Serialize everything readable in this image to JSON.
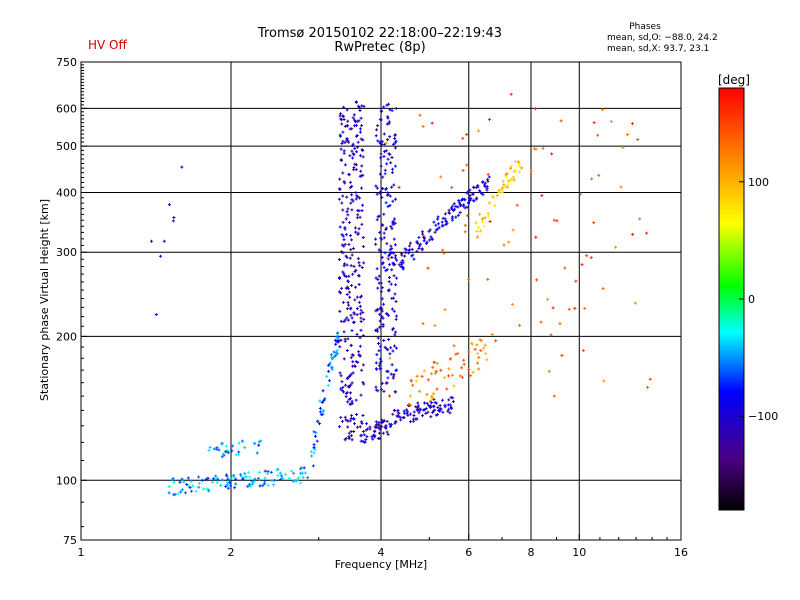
{
  "header": {
    "hv_status": "HV Off",
    "title_line1": "Tromsø 20150102 22:18:00–22:19:43",
    "title_line2": "RwPretec (8p)",
    "phases_title": "Phases",
    "phase_o": "mean, sd,O: −88.0, 24.2",
    "phase_x": "mean, sd,X:  93.7, 23.1"
  },
  "colorbar": {
    "label": "[deg]",
    "ticks": [
      "100",
      "0",
      "−100"
    ]
  },
  "chart_data": {
    "type": "scatter",
    "title": "Tromsø 20150102 22:18:00–22:19:43",
    "subtitle": "RwPretec (8p)",
    "xlabel": "Frequency [MHz]",
    "ylabel": "Stationary phase Virtual Height [km]",
    "x_scale": "log",
    "y_scale": "log",
    "xlim": [
      1,
      16
    ],
    "ylim": [
      75,
      750
    ],
    "x_ticks": [
      1,
      2,
      4,
      6,
      8,
      10,
      16
    ],
    "y_ticks": [
      75,
      100,
      200,
      300,
      400,
      500,
      600,
      750
    ],
    "x_grid": [
      2,
      4,
      6,
      8,
      10
    ],
    "y_grid": [
      100,
      200,
      300,
      400,
      500,
      600
    ],
    "grid": true,
    "color_scale": {
      "label": "[deg]",
      "min": -180,
      "max": 180,
      "ticks": [
        100,
        0,
        -100
      ]
    },
    "series": [
      {
        "cluster": "o-trace-low",
        "f_start": 1.5,
        "f_end": 2.9,
        "h_start": 97,
        "h_end": 103,
        "spread": 4,
        "phase": -45,
        "count": 120
      },
      {
        "cluster": "o-trace-low-upper",
        "f_start": 1.8,
        "f_end": 2.3,
        "h_start": 115,
        "h_end": 118,
        "spread": 4,
        "phase": -50,
        "count": 30
      },
      {
        "cluster": "o-trace-rise",
        "f_start": 2.9,
        "f_end": 3.3,
        "h_start": 110,
        "h_end": 200,
        "spread": 10,
        "phase": -60,
        "count": 60
      },
      {
        "cluster": "o-column-3.5",
        "f_start": 3.3,
        "f_end": 3.7,
        "h_start": 120,
        "h_end": 620,
        "spread": 0,
        "phase": -110,
        "count": 320
      },
      {
        "cluster": "o-trace-4",
        "f_start": 3.7,
        "f_end": 4.2,
        "h_start": 125,
        "h_end": 130,
        "spread": 6,
        "phase": -110,
        "count": 50
      },
      {
        "cluster": "o-column-4",
        "f_start": 3.9,
        "f_end": 4.3,
        "h_start": 150,
        "h_end": 620,
        "spread": 0,
        "phase": -100,
        "count": 220
      },
      {
        "cluster": "o-trace-mid",
        "f_start": 4.2,
        "f_end": 5.6,
        "h_start": 135,
        "h_end": 145,
        "spread": 6,
        "phase": -105,
        "count": 90
      },
      {
        "cluster": "o-trace-F",
        "f_start": 4.2,
        "f_end": 6.6,
        "h_start": 270,
        "h_end": 420,
        "spread": 15,
        "phase": -100,
        "count": 140
      },
      {
        "cluster": "x-trace-mid",
        "f_start": 4.5,
        "f_end": 6.8,
        "h_start": 150,
        "h_end": 190,
        "spread": 15,
        "phase": 120,
        "count": 60
      },
      {
        "cluster": "x-trace-F",
        "f_start": 6.2,
        "f_end": 7.7,
        "h_start": 330,
        "h_end": 470,
        "spread": 20,
        "phase": 90,
        "count": 50
      },
      {
        "cluster": "scatter-high",
        "f_start": 4.0,
        "f_end": 14.0,
        "h_start": 150,
        "h_end": 650,
        "spread": 0,
        "phase": 140,
        "count": 90
      },
      {
        "cluster": "scatter-low-freq",
        "f_start": 1.3,
        "f_end": 1.6,
        "h_start": 210,
        "h_end": 460,
        "spread": 0,
        "phase": -100,
        "count": 8
      }
    ]
  }
}
